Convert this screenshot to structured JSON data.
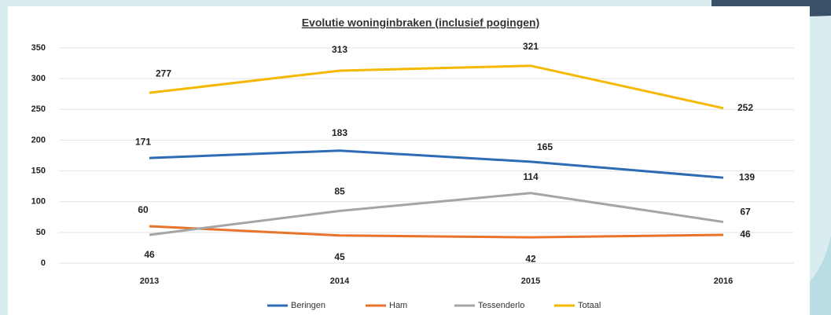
{
  "chart_data": {
    "type": "line",
    "title": "Evolutie woninginbraken (inclusief pogingen)",
    "categories": [
      "2013",
      "2014",
      "2015",
      "2016"
    ],
    "series": [
      {
        "name": "Beringen",
        "color": "#2e6bb5",
        "values": [
          171,
          183,
          165,
          139
        ]
      },
      {
        "name": "Ham",
        "color": "#e8732a",
        "values": [
          60,
          45,
          42,
          46
        ]
      },
      {
        "name": "Tessenderlo",
        "color": "#a5a5a5",
        "values": [
          46,
          85,
          114,
          67
        ]
      },
      {
        "name": "Totaal",
        "color": "#f5b800",
        "values": [
          277,
          313,
          321,
          252
        ]
      }
    ],
    "ylim": [
      0,
      350
    ],
    "yticks": [
      0,
      50,
      100,
      150,
      200,
      250,
      300,
      350
    ],
    "grid": true,
    "legend": "bottom"
  }
}
